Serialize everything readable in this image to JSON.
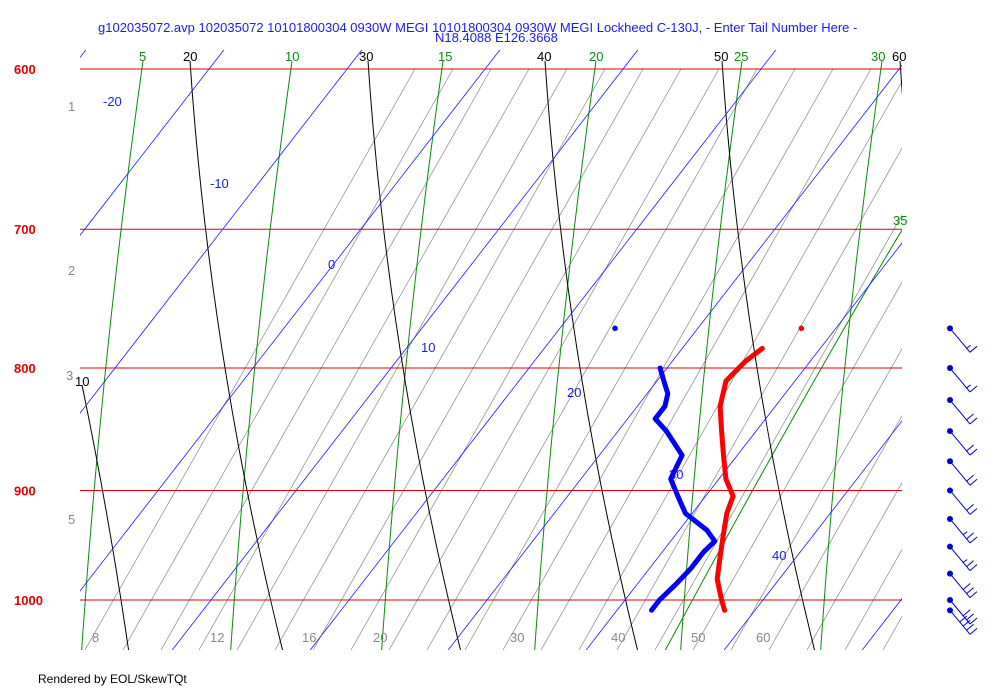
{
  "chart_data": {
    "type": "line",
    "title_line1": "g102035072.avp 102035072 10101800304 0930W MEGI 10101800304 0930W MEGI Lockheed C-130J, - Enter Tail Number Here -",
    "title_line2": "N18.4088 E126.3668",
    "footer": "Rendered by EOL/SkewTQt",
    "pressure_labels": [
      "600",
      "700",
      "800",
      "900",
      "1000"
    ],
    "isotherm_labels": [
      "-20",
      "-10",
      "0",
      "10",
      "20",
      "30",
      "40"
    ],
    "mixing_ratio_labels": [
      "1",
      "2",
      "3",
      "5",
      "8",
      "12",
      "16",
      "20",
      "30",
      "40",
      "50",
      "60"
    ],
    "dry_adiabat_labels": [
      "20",
      "30",
      "40",
      "50",
      "60",
      "10"
    ],
    "moist_adiabat_labels": [
      "5",
      "10",
      "15",
      "20",
      "25",
      "30",
      "35"
    ],
    "colors": {
      "isobar": "#e00000",
      "isotherm": "#1a1aff",
      "dry_adiabat": "#000000",
      "moist_adiabat": "#0a8a0a",
      "mixing_ratio": "#888888",
      "temperature": "#ff0000",
      "dewpoint": "#0000ff",
      "wind_barb": "#0000cc"
    },
    "series": [
      {
        "name": "",
        "values": [
          [
            1010,
            27.8
          ],
          [
            1000,
            27.0
          ],
          [
            980,
            25.5
          ],
          [
            960,
            24.5
          ],
          [
            940,
            23.5
          ],
          [
            920,
            22.5
          ],
          [
            905,
            22.0
          ],
          [
            890,
            20.5
          ],
          [
            870,
            19.0
          ],
          [
            850,
            17.5
          ],
          [
            830,
            16.0
          ],
          [
            810,
            15.0
          ],
          [
            795,
            15.3
          ],
          [
            785,
            15.8
          ]
        ]
      },
      {
        "name": "",
        "values": [
          [
            1010,
            22.5
          ],
          [
            1000,
            22.5
          ],
          [
            985,
            22.8
          ],
          [
            970,
            23.0
          ],
          [
            955,
            23.0
          ],
          [
            945,
            23.2
          ],
          [
            935,
            22.0
          ],
          [
            920,
            19.5
          ],
          [
            905,
            18.0
          ],
          [
            890,
            16.5
          ],
          [
            870,
            16.0
          ],
          [
            850,
            13.5
          ],
          [
            840,
            12.0
          ],
          [
            830,
            12.0
          ],
          [
            820,
            11.5
          ],
          [
            810,
            10.5
          ],
          [
            800,
            9.5
          ]
        ]
      }
    ],
    "surface_points": [
      {
        "p": 770,
        "t": 17.5
      },
      {
        "p": 770,
        "t": 4.0
      }
    ],
    "wind_barbs": [
      {
        "p": 770,
        "speed_kt": 15
      },
      {
        "p": 800,
        "speed_kt": 15
      },
      {
        "p": 825,
        "speed_kt": 20
      },
      {
        "p": 850,
        "speed_kt": 20
      },
      {
        "p": 875,
        "speed_kt": 20
      },
      {
        "p": 900,
        "speed_kt": 20
      },
      {
        "p": 925,
        "speed_kt": 25
      },
      {
        "p": 950,
        "speed_kt": 25
      },
      {
        "p": 975,
        "speed_kt": 30
      },
      {
        "p": 1000,
        "speed_kt": 30
      },
      {
        "p": 1010,
        "speed_kt": 40
      }
    ],
    "xlim": [
      -35,
      60
    ],
    "ylim": [
      1050,
      600
    ]
  }
}
